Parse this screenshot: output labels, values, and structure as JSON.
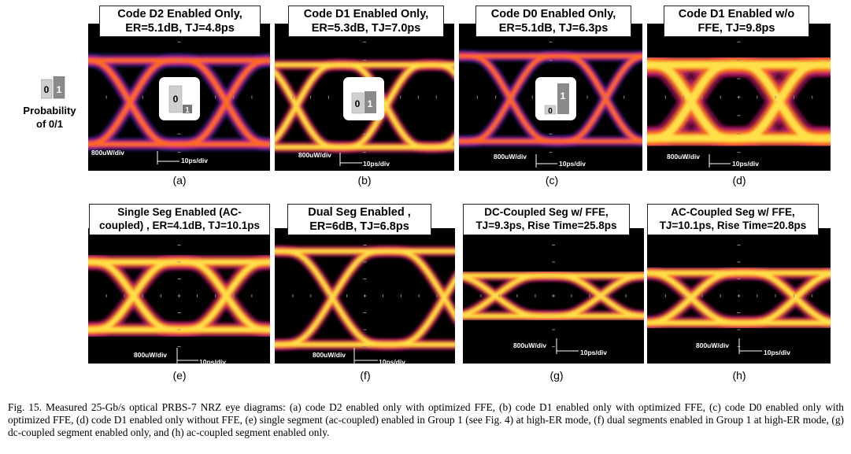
{
  "legend": {
    "label": "Probability\nof 0/1",
    "bit0": "0",
    "bit1": "1"
  },
  "panels": [
    {
      "id": "a",
      "title": "Code D2 Enabled Only,\nER=5.1dB, TJ=4.8ps",
      "sublabel": "(a)",
      "vscale": "800uW/div",
      "hscale": "10ps/div",
      "inset": {
        "low": "1",
        "high": "0"
      }
    },
    {
      "id": "b",
      "title": "Code D1 Enabled Only,\nER=5.3dB, TJ=7.0ps",
      "sublabel": "(b)",
      "vscale": "800uW/div",
      "hscale": "10ps/div",
      "inset": {
        "low": "0",
        "high": "1"
      }
    },
    {
      "id": "c",
      "title": "Code D0 Enabled Only,\nER=5.1dB, TJ=6.3ps",
      "sublabel": "(c)",
      "vscale": "800uW/div",
      "hscale": "10ps/div",
      "inset": {
        "low": "0",
        "high": "1"
      }
    },
    {
      "id": "d",
      "title": "Code D1 Enabled w/o\nFFE, TJ=9.8ps",
      "sublabel": "(d)",
      "vscale": "800uW/div",
      "hscale": "10ps/div"
    },
    {
      "id": "e",
      "title": "Single Seg Enabled (AC-\ncoupled) , ER=4.1dB, TJ=10.1ps",
      "sublabel": "(e)",
      "vscale": "800uW/div",
      "hscale": "10ps/div"
    },
    {
      "id": "f",
      "title": "Dual Seg Enabled ,\nER=6dB, TJ=6.8ps",
      "sublabel": "(f)",
      "vscale": "800uW/div",
      "hscale": "10ps/div"
    },
    {
      "id": "g",
      "title": "DC-Coupled Seg w/ FFE,\nTJ=9.3ps, Rise Time=25.8ps",
      "sublabel": "(g)",
      "vscale": "800uW/div",
      "hscale": "10ps/div"
    },
    {
      "id": "h",
      "title": "AC-Coupled  Seg w/ FFE,\nTJ=10.1ps, Rise Time=20.8ps",
      "sublabel": "(h)",
      "vscale": "800uW/div",
      "hscale": "10ps/div"
    }
  ],
  "caption": "Fig. 15.   Measured 25-Gb/s optical PRBS-7 NRZ eye diagrams: (a) code D2 enabled only with optimized FFE, (b) code D1 enabled only with optimized FFE, (c) code D0 enabled only with optimized FFE, (d) code D1 enabled only without FFE, (e) single segment (ac-coupled) enabled in Group 1 (see Fig. 4) at high-ER mode, (f) dual segments enabled in Group 1 at high-ER mode, (g) dc-coupled segment enabled only, and (h) ac-coupled segment enabled only.",
  "colors": {
    "background": "#000000",
    "hot": "#ffe04a",
    "warm": "#ff6a1a",
    "mid": "#d01878",
    "cool": "#3a2aa0"
  }
}
